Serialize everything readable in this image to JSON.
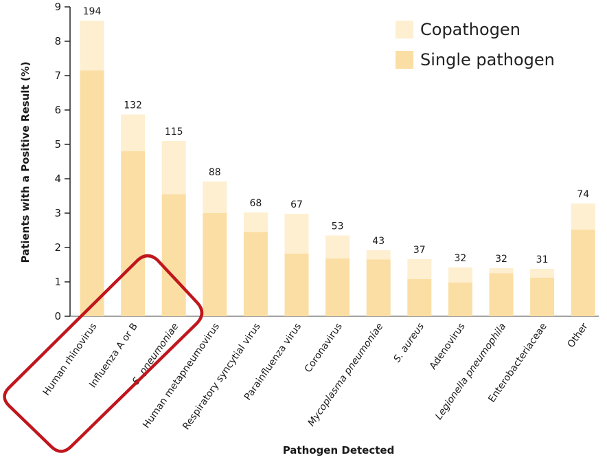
{
  "chart_data": {
    "type": "bar",
    "stacked": true,
    "xlabel": "Pathogen Detected",
    "ylabel": "Patients with a Positive Result (%)",
    "ylim": [
      0,
      9
    ],
    "yticks": [
      0,
      1,
      2,
      3,
      4,
      5,
      6,
      7,
      8,
      9
    ],
    "legend_position": "top-right",
    "categories": [
      {
        "label": "Human rhinovirus",
        "italic": false
      },
      {
        "label": "Influenza A or B",
        "italic": false
      },
      {
        "label": "S. pneumoniae",
        "italic": true
      },
      {
        "label": "Human metapneumovirus",
        "italic": false
      },
      {
        "label": "Respiratory syncytial virus",
        "italic": false
      },
      {
        "label": "Parainfluenza virus",
        "italic": false
      },
      {
        "label": "Coronavirus",
        "italic": false
      },
      {
        "label": "Mycoplasma pneumoniae",
        "italic": true
      },
      {
        "label": "S. aureus",
        "italic": true
      },
      {
        "label": "Adenovirus",
        "italic": false
      },
      {
        "label": "Legionella pneumophila",
        "italic": true
      },
      {
        "label": "Enterobacteriaceae",
        "italic": false
      },
      {
        "label": "Other",
        "italic": false
      }
    ],
    "counts": [
      "194",
      "132",
      "115",
      "88",
      "68",
      "67",
      "53",
      "43",
      "37",
      "32",
      "32",
      "31",
      "74"
    ],
    "series": [
      {
        "name": "Single pathogen",
        "color": "#fbdea3",
        "values": [
          7.15,
          4.8,
          3.55,
          3.0,
          2.45,
          1.82,
          1.68,
          1.65,
          1.08,
          0.98,
          1.25,
          1.12,
          2.52
        ]
      },
      {
        "name": "Copathogen",
        "color": "#fdefd0",
        "values": [
          1.45,
          1.07,
          1.55,
          0.92,
          0.57,
          1.16,
          0.67,
          0.27,
          0.58,
          0.44,
          0.15,
          0.26,
          0.76
        ]
      }
    ],
    "annotation": {
      "shape": "rounded-rectangle",
      "color": "#c0161d",
      "highlights": [
        "Human rhinovirus",
        "Influenza A or B",
        "S. pneumoniae"
      ]
    }
  }
}
